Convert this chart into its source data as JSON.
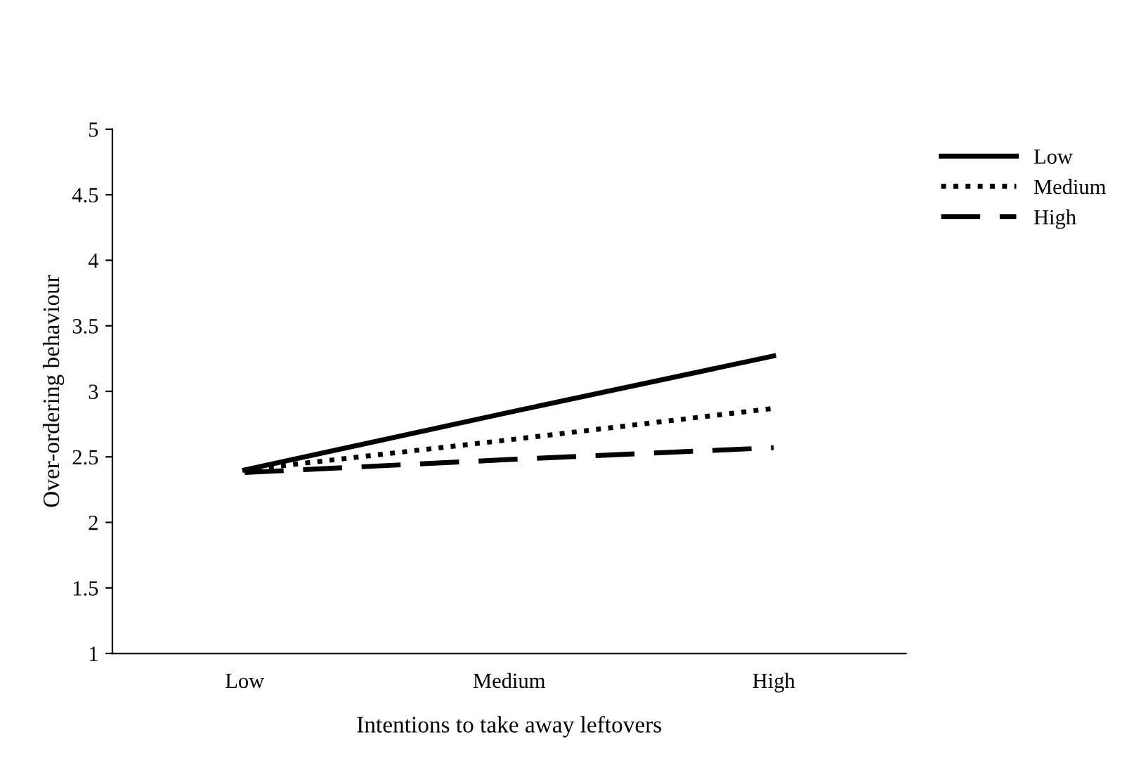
{
  "chart_data": {
    "type": "line",
    "xlabel": "Intentions to take away leftovers",
    "ylabel": "Over-ordering behaviour",
    "categories": [
      "Low",
      "Medium",
      "High"
    ],
    "series": [
      {
        "name": "Low",
        "color": "#000000",
        "line_style": "solid",
        "values": [
          2.4,
          2.84,
          3.27
        ]
      },
      {
        "name": "Medium",
        "color": "#000000",
        "line_style": "dotted",
        "values": [
          2.4,
          2.63,
          2.87
        ]
      },
      {
        "name": "High",
        "color": "#000000",
        "line_style": "dashed",
        "values": [
          2.38,
          2.48,
          2.57
        ]
      }
    ],
    "ylim": [
      1,
      5
    ],
    "yticks": [
      1,
      1.5,
      2,
      2.5,
      3,
      3.5,
      4,
      4.5,
      5
    ],
    "grid": false,
    "legend": "top right",
    "marker": "none"
  }
}
